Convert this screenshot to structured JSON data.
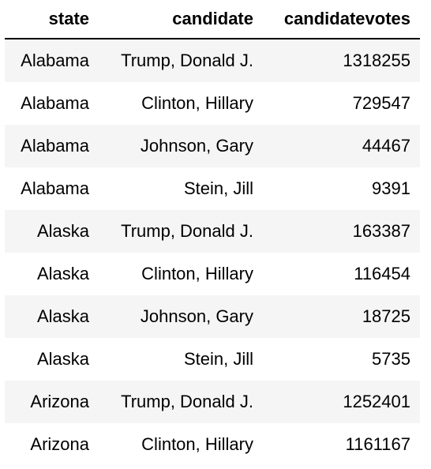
{
  "table": {
    "columns": [
      "state",
      "candidate",
      "candidatevotes"
    ],
    "rows": [
      [
        "Alabama",
        "Trump, Donald J.",
        "1318255"
      ],
      [
        "Alabama",
        "Clinton, Hillary",
        "729547"
      ],
      [
        "Alabama",
        "Johnson, Gary",
        "44467"
      ],
      [
        "Alabama",
        "Stein, Jill",
        "9391"
      ],
      [
        "Alaska",
        "Trump, Donald J.",
        "163387"
      ],
      [
        "Alaska",
        "Clinton, Hillary",
        "116454"
      ],
      [
        "Alaska",
        "Johnson, Gary",
        "18725"
      ],
      [
        "Alaska",
        "Stein, Jill",
        "5735"
      ],
      [
        "Arizona",
        "Trump, Donald J.",
        "1252401"
      ],
      [
        "Arizona",
        "Clinton, Hillary",
        "1161167"
      ]
    ]
  }
}
